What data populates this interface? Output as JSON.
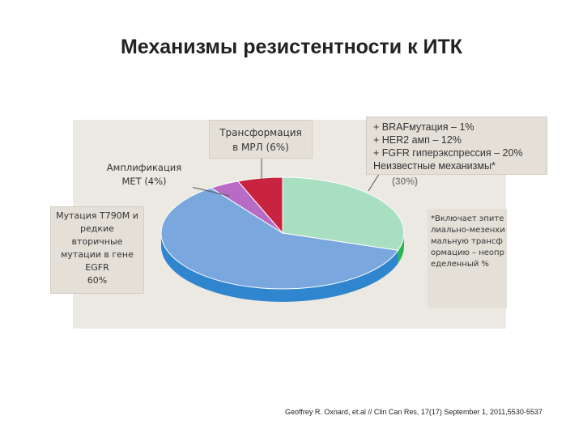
{
  "slide": {
    "title": "Механизмы резистентности к ИТК",
    "citation": "Geoffrey R. Oxnard, et.al // Clin Can Res, 17(17) September 1, 2011,5530-5537"
  },
  "labels": {
    "mrl": [
      "Трансформация",
      "в МРЛ (6%)"
    ],
    "met": [
      "Амплификация",
      "MET (4%)"
    ],
    "t790m": [
      "Мутация T790M и",
      "редкие",
      "вторичные",
      "мутации в гене",
      "EGFR",
      "60%"
    ],
    "other": [
      "+ BRAFмутация – 1%",
      "+ HER2 амп – 12%",
      "+ FGFR гиперэкспрессия – 20%",
      "Неизвестные механизмы*"
    ],
    "other_pct": "(30%)",
    "footnote": "*Включает эпителиально-мезенхимальную трансформацию – неопределенный %"
  },
  "chart_data": {
    "type": "pie",
    "title": "Механизмы резистентности к ИТК",
    "slices": [
      {
        "label": "Неизвестные механизмы*",
        "value": 30,
        "color": "#a8dfc0",
        "side_color": "#27b84f"
      },
      {
        "label": "Мутация T790M и редкие вторичные мутации в гене EGFR",
        "value": 60,
        "color": "#79a7de",
        "side_color": "#2f86cf"
      },
      {
        "label": "Амплификация MET",
        "value": 4,
        "color": "#b76bc4",
        "side_color": "#7d3d8e"
      },
      {
        "label": "Трансформация в МРЛ",
        "value": 6,
        "color": "#c8243f",
        "side_color": "#8e1a2d"
      }
    ]
  }
}
